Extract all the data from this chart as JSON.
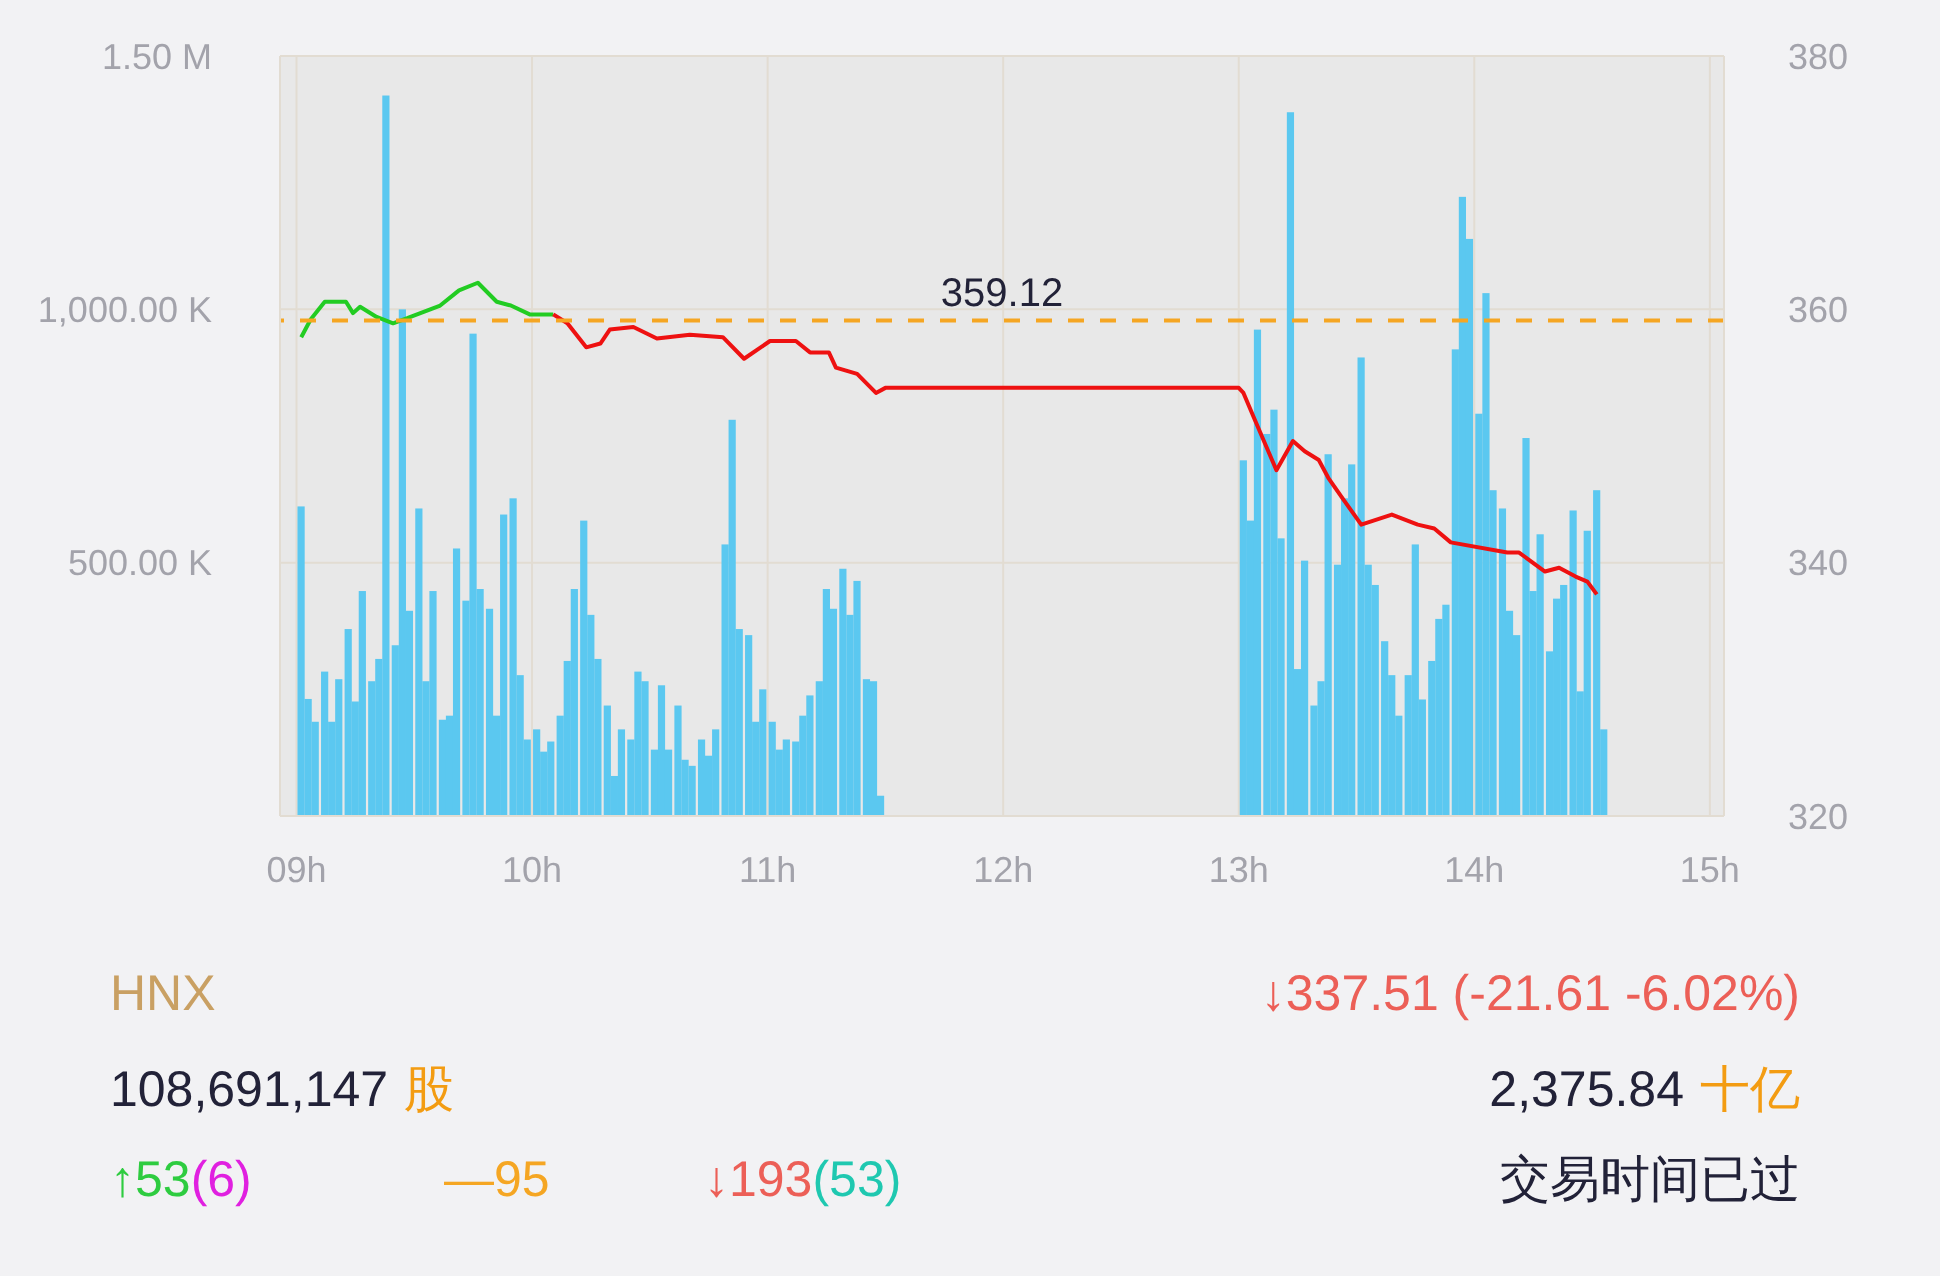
{
  "chart_data": [
    {
      "type": "bar",
      "xlim": [
        8.93,
        15.06
      ],
      "xticks": [
        {
          "value": 9,
          "label": "09h"
        },
        {
          "value": 10,
          "label": "10h"
        },
        {
          "value": 11,
          "label": "11h"
        },
        {
          "value": 12,
          "label": "12h"
        },
        {
          "value": 13,
          "label": "13h"
        },
        {
          "value": 14,
          "label": "14h"
        },
        {
          "value": 15,
          "label": "15h"
        }
      ],
      "ylim": [
        0,
        1500000
      ],
      "yticks": [
        {
          "value": 0,
          "label": null
        },
        {
          "value": 500000,
          "label": "500.00 K"
        },
        {
          "value": 1000000,
          "label": "1,000.00 K"
        },
        {
          "value": 1500000,
          "label": "1.50 M"
        }
      ],
      "y2lim": [
        320,
        380
      ],
      "y2ticks": [
        320,
        340,
        360,
        380
      ],
      "grid": true,
      "ref_lines": [
        {
          "axis": "y2",
          "value": 359.12,
          "label": "359.12",
          "color": "#f5a623",
          "line_style": "dashed"
        }
      ],
      "series": [
        {
          "type": "bar",
          "color": "#5bc8f0",
          "x": [
            9.02,
            9.05,
            9.08,
            9.12,
            9.15,
            9.18,
            9.22,
            9.25,
            9.28,
            9.32,
            9.35,
            9.38,
            9.42,
            9.45,
            9.48,
            9.52,
            9.55,
            9.58,
            9.62,
            9.65,
            9.68,
            9.72,
            9.75,
            9.78,
            9.82,
            9.85,
            9.88,
            9.92,
            9.95,
            9.98,
            10.02,
            10.05,
            10.08,
            10.12,
            10.15,
            10.18,
            10.22,
            10.25,
            10.28,
            10.32,
            10.35,
            10.38,
            10.42,
            10.45,
            10.48,
            10.52,
            10.55,
            10.58,
            10.62,
            10.65,
            10.68,
            10.72,
            10.75,
            10.78,
            10.82,
            10.85,
            10.88,
            10.92,
            10.95,
            10.98,
            11.02,
            11.05,
            11.08,
            11.12,
            11.15,
            11.18,
            11.22,
            11.25,
            11.28,
            11.32,
            11.35,
            11.38,
            11.42,
            11.45,
            11.48,
            13.02,
            13.05,
            13.08,
            13.12,
            13.15,
            13.18,
            13.22,
            13.25,
            13.28,
            13.32,
            13.35,
            13.38,
            13.42,
            13.45,
            13.48,
            13.52,
            13.55,
            13.58,
            13.62,
            13.65,
            13.68,
            13.72,
            13.75,
            13.78,
            13.82,
            13.85,
            13.88,
            13.92,
            13.95,
            13.98,
            14.02,
            14.05,
            14.08,
            14.12,
            14.15,
            14.18,
            14.22,
            14.25,
            14.28,
            14.32,
            14.35,
            14.38,
            14.42,
            14.45,
            14.48,
            14.52,
            14.55
          ],
          "values": [
            611000,
            231000,
            186000,
            285000,
            186000,
            270000,
            369000,
            226000,
            444000,
            266000,
            310000,
            1422000,
            337000,
            1000000,
            405000,
            607000,
            266000,
            444000,
            190000,
            198000,
            528000,
            425000,
            952000,
            448000,
            409000,
            198000,
            595000,
            627000,
            278000,
            151000,
            171000,
            127000,
            147000,
            198000,
            306000,
            448000,
            583000,
            397000,
            310000,
            218000,
            79000,
            171000,
            151000,
            285000,
            266000,
            131000,
            258000,
            131000,
            218000,
            111000,
            99000,
            151000,
            119000,
            171000,
            536000,
            782000,
            369000,
            357000,
            186000,
            250000,
            186000,
            131000,
            151000,
            147000,
            198000,
            238000,
            266000,
            448000,
            409000,
            488000,
            397000,
            464000,
            270000,
            266000,
            40000,
            702000,
            583000,
            960000,
            754000,
            802000,
            548000,
            1389000,
            290000,
            504000,
            218000,
            266000,
            714000,
            496000,
            627000,
            694000,
            905000,
            496000,
            456000,
            345000,
            278000,
            198000,
            278000,
            536000,
            230000,
            306000,
            389000,
            417000,
            921000,
            1222000,
            1139000,
            794000,
            1032000,
            643000,
            607000,
            405000,
            357000,
            746000,
            444000,
            556000,
            325000,
            429000,
            456000,
            603000,
            246000,
            563000,
            643000,
            171000
          ]
        },
        {
          "type": "line",
          "axis": "y2",
          "color": "#22cc22",
          "x": [
            9.02,
            9.06,
            9.12,
            9.21,
            9.24,
            9.27,
            9.34,
            9.41,
            9.47,
            9.61,
            9.69,
            9.77,
            9.85,
            9.91,
            9.99,
            10.09
          ],
          "values": [
            357.8,
            359.2,
            360.6,
            360.6,
            359.7,
            360.2,
            359.4,
            358.9,
            359.3,
            360.3,
            361.5,
            362.1,
            360.6,
            360.3,
            359.6,
            359.6
          ]
        },
        {
          "type": "line",
          "axis": "y2",
          "color": "#ee1111",
          "x": [
            10.09,
            10.15,
            10.23,
            10.29,
            10.33,
            10.43,
            10.53,
            10.67,
            10.81,
            10.9,
            11.01,
            11.12,
            11.18,
            11.26,
            11.29,
            11.38,
            11.46,
            11.5,
            13.0,
            13.02,
            13.07,
            13.13,
            13.16,
            13.23,
            13.28,
            13.34,
            13.38,
            13.44,
            13.52,
            13.65,
            13.76,
            13.83,
            13.9,
            14.14,
            14.19,
            14.3,
            14.36,
            14.43,
            14.48,
            14.52
          ],
          "values": [
            359.6,
            358.9,
            357,
            357.3,
            358.4,
            358.6,
            357.7,
            358,
            357.8,
            356.1,
            357.5,
            357.5,
            356.6,
            356.6,
            355.4,
            354.9,
            353.4,
            353.8,
            353.8,
            353.4,
            351.2,
            348.6,
            347.3,
            349.6,
            348.8,
            348.1,
            346.7,
            345.1,
            343,
            343.8,
            343,
            342.7,
            341.6,
            340.8,
            340.8,
            339.3,
            339.6,
            338.9,
            338.5,
            337.5
          ]
        }
      ]
    },
    {
      "type": "other",
      "annotations": [
        "HNX",
        "↓337.51 (-21.61 -6.02%)",
        "108,691,147",
        "股",
        "2,375.84",
        "十亿",
        "↑53",
        "(6)",
        "—95",
        "↓193",
        "(53)",
        "交易时间已过"
      ]
    }
  ]
}
